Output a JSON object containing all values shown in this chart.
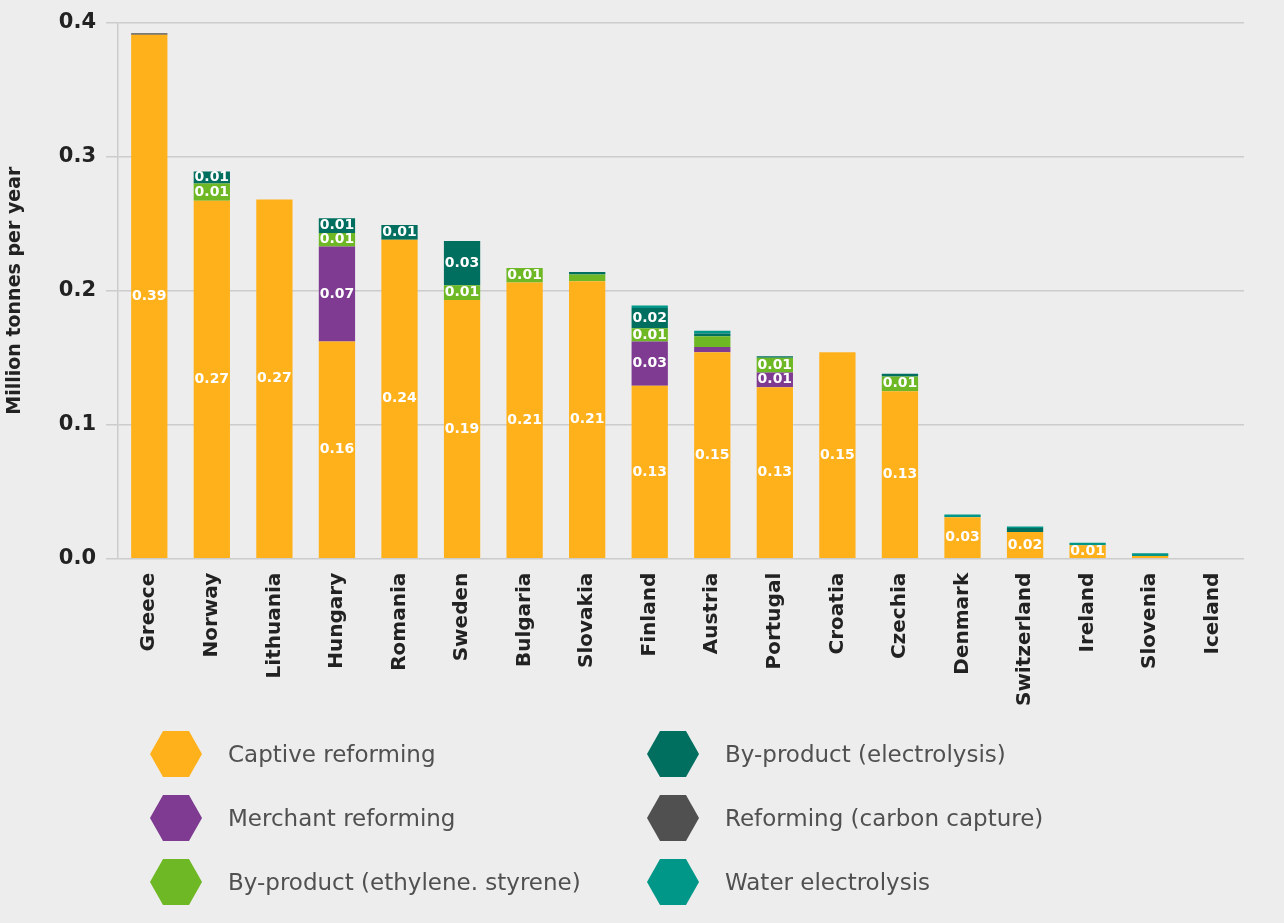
{
  "chart_data": {
    "type": "bar",
    "stacked": true,
    "ylabel": "Million tonnes per year",
    "categories": [
      "Greece",
      "Norway",
      "Lithuania",
      "Hungary",
      "Romania",
      "Sweden",
      "Bulgaria",
      "Slovakia",
      "Finland",
      "Austria",
      "Portugal",
      "Croatia",
      "Czechia",
      "Denmark",
      "Switzerland",
      "Ireland",
      "Slovenia",
      "Iceland"
    ],
    "series": [
      {
        "name": "Captive reforming",
        "color": "#ffb11b",
        "values": [
          0.391,
          0.267,
          0.268,
          0.162,
          0.238,
          0.193,
          0.206,
          0.207,
          0.129,
          0.154,
          0.128,
          0.154,
          0.125,
          0.031,
          0.02,
          0.01,
          0.002,
          0
        ],
        "value_labels": [
          "0.39",
          "0.27",
          "0.27",
          "0.16",
          "0.24",
          "0.19",
          "0.21",
          "0.21",
          "0.13",
          "0.15",
          "0.13",
          "0.15",
          "0.13",
          "0.03",
          "0.02",
          "0.01",
          null,
          null
        ]
      },
      {
        "name": "Merchant reforming",
        "color": "#7e3b91",
        "values": [
          0,
          0,
          0,
          0.071,
          0,
          0,
          0,
          0,
          0.033,
          0.004,
          0.011,
          0,
          0,
          0,
          0,
          0,
          0,
          0
        ],
        "value_labels": [
          null,
          null,
          null,
          "0.07",
          null,
          null,
          null,
          null,
          "0.03",
          null,
          "0.01",
          null,
          null,
          null,
          null,
          null,
          null,
          null
        ]
      },
      {
        "name": "By-product (ethylene. styrene)",
        "color": "#6fb825",
        "values": [
          0,
          0.013,
          0,
          0.01,
          0,
          0.011,
          0.011,
          0.005,
          0.01,
          0.008,
          0.011,
          0,
          0.011,
          0,
          0,
          0,
          0,
          0
        ],
        "value_labels": [
          null,
          "0.01",
          null,
          "0.01",
          null,
          "0.01",
          "0.01",
          null,
          "0.01",
          null,
          "0.01",
          null,
          "0.01",
          null,
          null,
          null,
          null,
          null
        ]
      },
      {
        "name": "By-product (electrolysis)",
        "color": "#006f5f",
        "values": [
          0,
          0.009,
          0,
          0.011,
          0.011,
          0.033,
          0,
          0.002,
          0.015,
          0.002,
          0.001,
          0,
          0.002,
          0,
          0.003,
          0,
          0,
          0
        ],
        "value_labels": [
          null,
          "0.01",
          null,
          "0.01",
          "0.01",
          "0.03",
          null,
          null,
          "0.02",
          null,
          null,
          null,
          null,
          null,
          null,
          null,
          null,
          null
        ]
      },
      {
        "name": "Reforming (carbon capture)",
        "color": "#505050",
        "values": [
          0.001,
          0,
          0,
          0,
          0,
          0,
          0,
          0,
          0,
          0,
          0,
          0,
          0,
          0,
          0,
          0,
          0,
          0
        ]
      },
      {
        "name": "Water electrolysis",
        "color": "#009688",
        "values": [
          0,
          0,
          0,
          0,
          0,
          0,
          0,
          0,
          0.002,
          0.002,
          0,
          0,
          0,
          0.002,
          0.001,
          0.002,
          0.002,
          0
        ]
      }
    ],
    "ylim": [
      0,
      0.4
    ],
    "yticks": [
      {
        "value": 0,
        "label": "0.0"
      },
      {
        "value": 0.1,
        "label": "0.1"
      },
      {
        "value": 0.2,
        "label": "0.2"
      },
      {
        "value": 0.3,
        "label": "0.3"
      },
      {
        "value": 0.4,
        "label": "0.4"
      }
    ],
    "grid": "y",
    "legend": "bottom"
  }
}
